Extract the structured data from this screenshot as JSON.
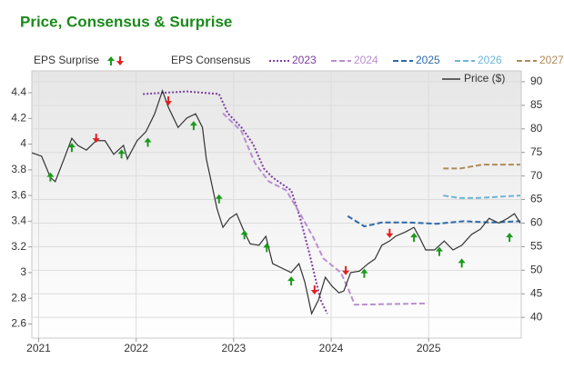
{
  "chart_data": {
    "type": "line",
    "title": "Price, Consensus & Surprise",
    "surprise_label": "EPS Surprise",
    "consensus_label": "EPS Consensus",
    "xlim": [
      2020.93,
      2025.95
    ],
    "xticks": [
      2021,
      2022,
      2023,
      2024,
      2025
    ],
    "ylim": [
      2.49,
      4.57
    ],
    "yticks": [
      2.6,
      2.8,
      3,
      3.2,
      3.4,
      3.6,
      3.8,
      4,
      4.2,
      4.4
    ],
    "y2lim": [
      35.6,
      92.3
    ],
    "y2ticks": [
      40,
      45,
      50,
      55,
      60,
      65,
      70,
      75,
      80,
      85,
      90
    ],
    "grid": true,
    "series": [
      {
        "name": "2023",
        "color": "#7b3f9e",
        "dash": "dotted",
        "x": [
          2022.07,
          2022.52,
          2022.85,
          2022.94,
          2023.08,
          2023.2,
          2023.31,
          2023.4,
          2023.59,
          2023.68,
          2023.78,
          2023.89,
          2023.96
        ],
        "values": [
          4.39,
          4.41,
          4.39,
          4.24,
          4.13,
          4.0,
          3.81,
          3.74,
          3.64,
          3.43,
          3.14,
          2.79,
          2.68
        ]
      },
      {
        "name": "2024",
        "color": "#b98fd0",
        "dash": "dashed",
        "x": [
          2022.89,
          2023.08,
          2023.22,
          2023.36,
          2023.54,
          2023.68,
          2023.82,
          2023.92,
          2024.1,
          2024.2,
          2024.24,
          2024.99
        ],
        "values": [
          4.24,
          4.1,
          3.85,
          3.71,
          3.64,
          3.46,
          3.27,
          3.11,
          3.0,
          2.83,
          2.75,
          2.76
        ]
      },
      {
        "name": "2025",
        "color": "#2e6aa8",
        "dash": "dashed",
        "x": [
          2024.17,
          2024.34,
          2024.52,
          2024.8,
          2025.08,
          2025.36,
          2025.64,
          2025.94
        ],
        "values": [
          3.44,
          3.36,
          3.39,
          3.39,
          3.38,
          3.4,
          3.39,
          3.4
        ]
      },
      {
        "name": "2026",
        "color": "#6fb4d8",
        "dash": "dashed",
        "x": [
          2025.15,
          2025.32,
          2025.5,
          2025.94
        ],
        "values": [
          3.6,
          3.58,
          3.58,
          3.6
        ]
      },
      {
        "name": "2027",
        "color": "#b08a5a",
        "dash": "dashed",
        "x": [
          2025.15,
          2025.32,
          2025.55,
          2025.94
        ],
        "values": [
          3.81,
          3.81,
          3.84,
          3.84
        ]
      },
      {
        "name": "Price ($)",
        "color": "#333333",
        "dash": "solid",
        "axis": "y2",
        "x": [
          2020.93,
          2021.03,
          2021.12,
          2021.17,
          2021.26,
          2021.34,
          2021.4,
          2021.49,
          2021.59,
          2021.68,
          2021.77,
          2021.87,
          2021.91,
          2022.01,
          2022.1,
          2022.19,
          2022.27,
          2022.33,
          2022.43,
          2022.52,
          2022.61,
          2022.68,
          2022.72,
          2022.77,
          2022.83,
          2022.89,
          2022.96,
          2023.03,
          2023.11,
          2023.17,
          2023.26,
          2023.33,
          2023.4,
          2023.5,
          2023.59,
          2023.67,
          2023.73,
          2023.8,
          2023.87,
          2023.94,
          2024.01,
          2024.08,
          2024.13,
          2024.2,
          2024.29,
          2024.38,
          2024.45,
          2024.52,
          2024.6,
          2024.66,
          2024.76,
          2024.85,
          2024.91,
          2024.97,
          2025.06,
          2025.16,
          2025.25,
          2025.34,
          2025.44,
          2025.53,
          2025.62,
          2025.72,
          2025.81,
          2025.88,
          2025.94
        ],
        "values": [
          74.9,
          74.2,
          69.7,
          68.8,
          73.6,
          78.0,
          76.5,
          75.5,
          77.5,
          77.5,
          74.6,
          76.5,
          73.6,
          77.5,
          79.4,
          83.2,
          88.1,
          84.6,
          80.3,
          82.3,
          83.2,
          80.3,
          73.6,
          68.8,
          63.0,
          59.1,
          61.0,
          62.0,
          58.1,
          55.6,
          55.3,
          57.2,
          51.4,
          50.4,
          49.5,
          51.4,
          47.5,
          40.8,
          43.7,
          48.5,
          46.6,
          45.2,
          45.6,
          49.5,
          49.8,
          51.4,
          52.4,
          55.3,
          56.2,
          57.2,
          58.1,
          59.1,
          56.8,
          54.3,
          54.3,
          56.2,
          54.3,
          55.3,
          57.6,
          58.7,
          61.0,
          60.0,
          61.0,
          62.0,
          60.0
        ]
      }
    ],
    "surprise": {
      "up": {
        "color": "#1a9a1a",
        "x": [
          2021.12,
          2021.34,
          2021.85,
          2022.12,
          2022.59,
          2022.85,
          2023.11,
          2023.34,
          2023.59,
          2024.34,
          2024.85,
          2025.11,
          2025.34,
          2025.83
        ],
        "values": [
          3.78,
          4.01,
          3.96,
          4.05,
          4.18,
          3.61,
          3.33,
          3.23,
          2.97,
          3.03,
          3.31,
          3.2,
          3.11,
          3.31
        ]
      },
      "down": {
        "color": "#e02020",
        "x": [
          2021.59,
          2022.33,
          2023.83,
          2024.15,
          2024.6
        ],
        "values": [
          4.01,
          4.3,
          2.83,
          2.98,
          3.27
        ]
      }
    }
  }
}
